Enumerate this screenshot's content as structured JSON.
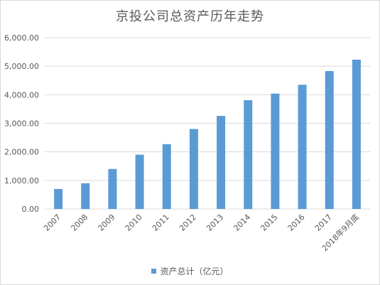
{
  "chart_data": {
    "type": "bar",
    "title": "京投公司总资产历年走势",
    "categories": [
      "2007",
      "2008",
      "2009",
      "2010",
      "2011",
      "2012",
      "2013",
      "2014",
      "2015",
      "2016",
      "2017",
      "2018年9月底"
    ],
    "series": [
      {
        "name": "资产总计（亿元）",
        "values": [
          700,
          900,
          1400,
          1900,
          2270,
          2800,
          3260,
          3810,
          4040,
          4350,
          4830,
          5230
        ]
      }
    ],
    "ylim": [
      0,
      6000
    ],
    "yticks": [
      "0.00",
      "1,000.00",
      "2,000.00",
      "3,000.00",
      "4,000.00",
      "5,000.00",
      "6,000.00"
    ],
    "ytick_values": [
      0,
      1000,
      2000,
      3000,
      4000,
      5000,
      6000
    ],
    "grid": true,
    "legend_position": "bottom",
    "colors": {
      "bar": "#5b9bd5",
      "grid": "#d9d9d9",
      "text": "#595959"
    }
  }
}
